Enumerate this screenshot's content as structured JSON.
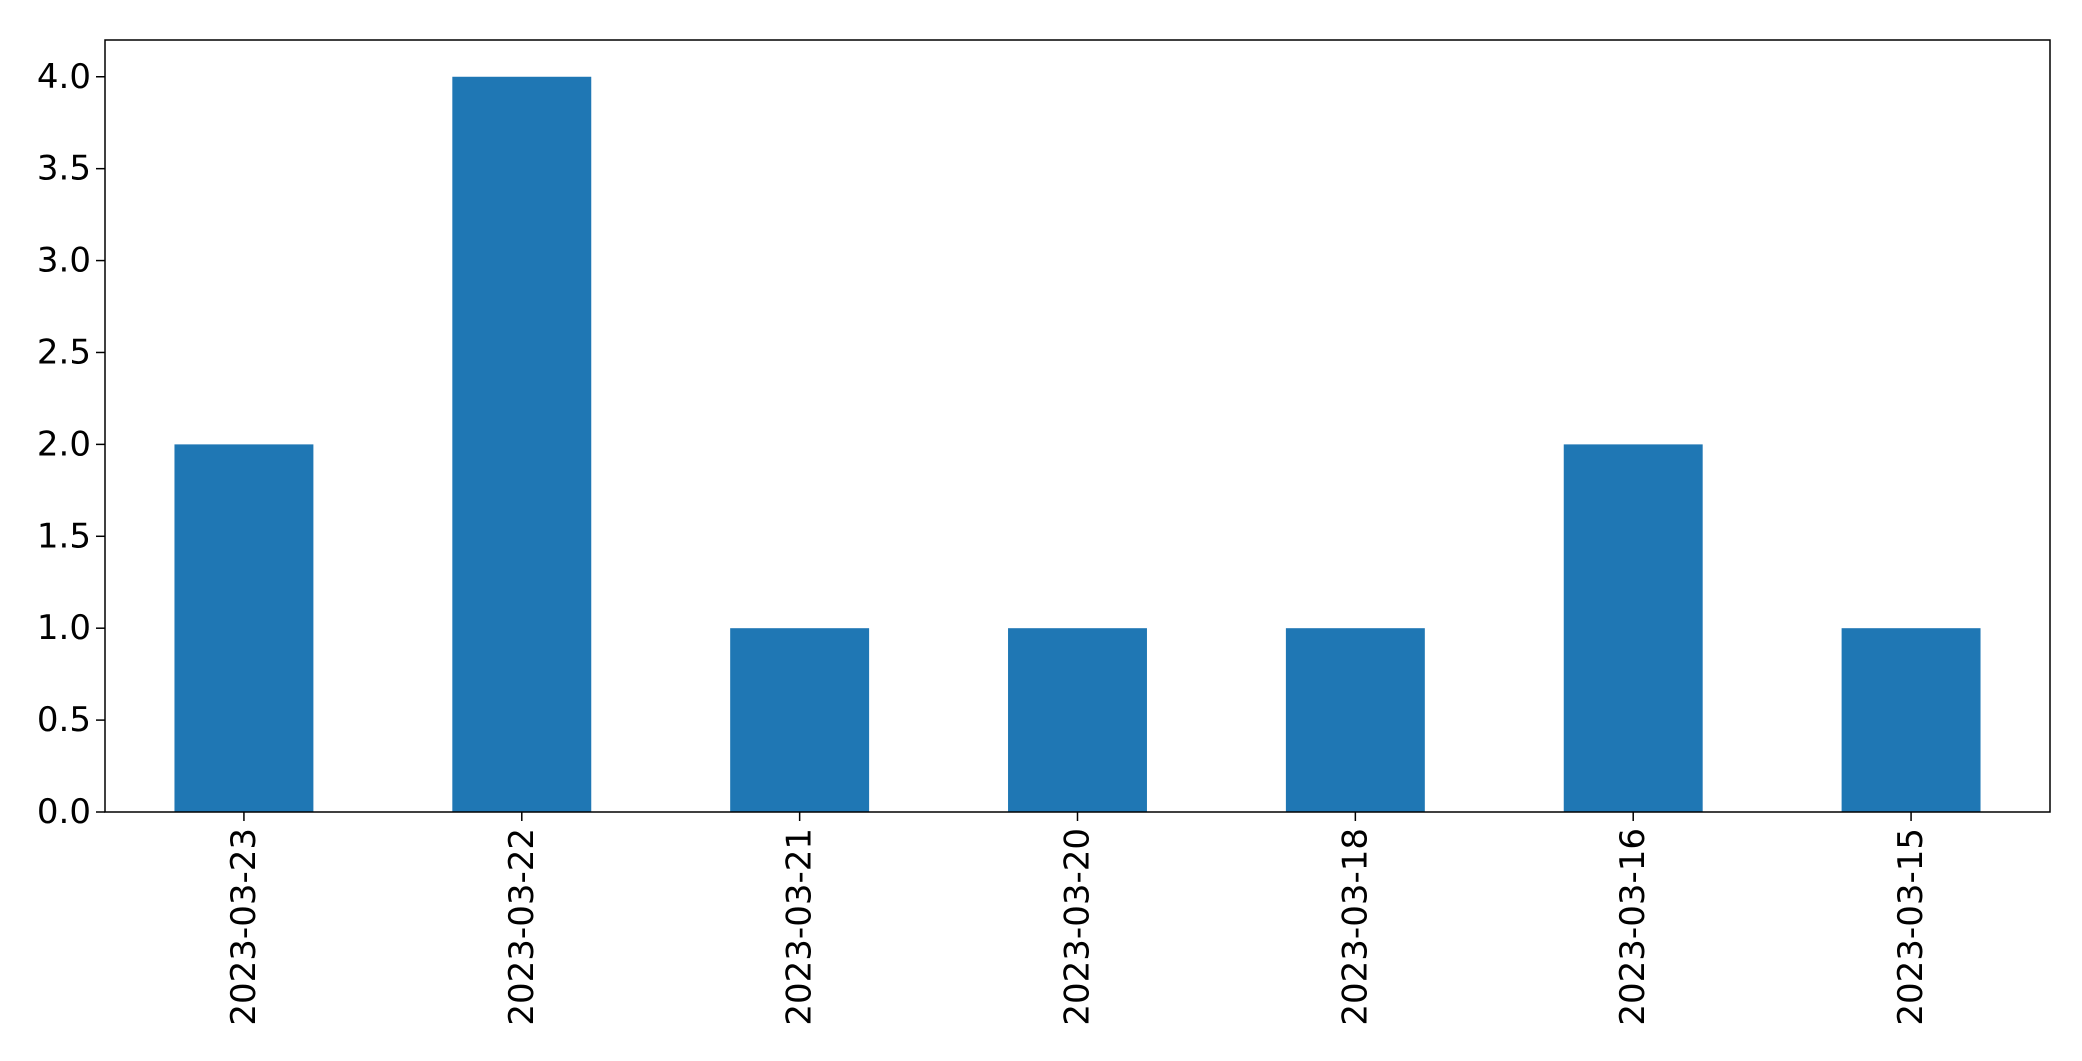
{
  "chart_data": {
    "type": "bar",
    "categories": [
      "2023-03-23",
      "2023-03-22",
      "2023-03-21",
      "2023-03-20",
      "2023-03-18",
      "2023-03-16",
      "2023-03-15"
    ],
    "values": [
      2,
      4,
      1,
      1,
      1,
      2,
      1
    ],
    "title": "",
    "xlabel": "",
    "ylabel": "",
    "ylim": [
      0,
      4.2
    ],
    "yticks": [
      "0.0",
      "0.5",
      "1.0",
      "1.5",
      "2.0",
      "2.5",
      "3.0",
      "3.5",
      "4.0"
    ],
    "grid": false,
    "colors": {
      "bar": "#1f77b4",
      "axis": "#000000",
      "background": "#ffffff"
    }
  }
}
